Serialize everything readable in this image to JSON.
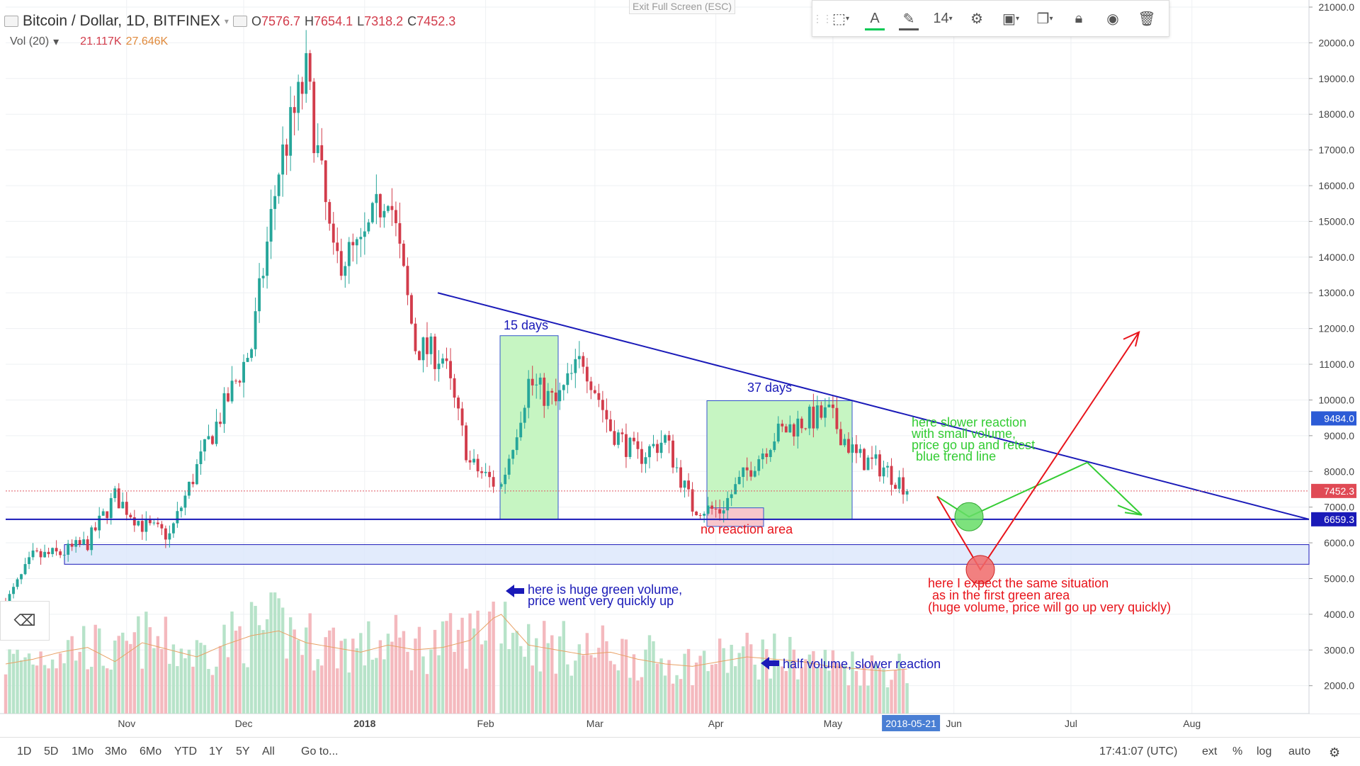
{
  "header": {
    "symbol": "Bitcoin / Dollar, 1D, BITFINEX",
    "open_label": "O",
    "open": "7576.7",
    "high_label": "H",
    "high": "7654.1",
    "low_label": "L",
    "low": "7318.2",
    "close_label": "C",
    "close": "7452.3",
    "volume_label": "Vol (20)",
    "volume_value": "21.117K",
    "volume_ma": "27.646K"
  },
  "fullscreen_label": "Exit Full Screen (ESC)",
  "toolbar": {
    "font_size": "14",
    "text_color": "#00c853",
    "line_color": "#555555"
  },
  "bottom_bar": {
    "ranges": [
      "1D",
      "5D",
      "1Mo",
      "3Mo",
      "6Mo",
      "YTD",
      "1Y",
      "5Y",
      "All"
    ],
    "goto": "Go to...",
    "clock": "17:41:07 (UTC)",
    "opt_ext": "ext",
    "opt_pct": "%",
    "opt_log": "log",
    "opt_auto": "auto"
  },
  "price_axis": {
    "ticks": [
      "21000.0",
      "20000.0",
      "19000.0",
      "18000.0",
      "17000.0",
      "16000.0",
      "15000.0",
      "14000.0",
      "13000.0",
      "12000.0",
      "11000.0",
      "10000.0",
      "9000.0",
      "8000.0",
      "7000.0",
      "6000.0",
      "5000.0",
      "4000.0",
      "3000.0",
      "2000.0"
    ],
    "badge_blue_top": "9484.0",
    "badge_last": "7452.3",
    "badge_blue_bottom": "6659.3"
  },
  "time_axis": {
    "labels": [
      "Nov",
      "Dec",
      "2018",
      "Feb",
      "Mar",
      "Apr",
      "May",
      "Jun",
      "Jul",
      "Aug"
    ],
    "crosshair_date": "2018-05-21"
  },
  "annotations": {
    "days15": "15 days",
    "days37": "37 days",
    "no_reaction": "no reaction area",
    "huge_volume_1": "here is huge green volume,",
    "huge_volume_2": "price went very quickly up",
    "half_volume": "half volume, slower reaction",
    "slower_1": "here slower reaction",
    "slower_2": "with small volume,",
    "slower_3": "price go up and retest",
    "slower_4": "blue trend line",
    "expect_1": "here I expect the same situation",
    "expect_2": "as in the first green area",
    "expect_3": "(huge volume, price will go up very quickly)"
  },
  "colors": {
    "up": "#26a69a",
    "down": "#d23c4b",
    "trend": "#1a1ab8",
    "green_zone": "#c6f5c2",
    "red_text": "#e8141b",
    "green_text": "#33cc33"
  },
  "chart_data": {
    "type": "candlestick",
    "title": "Bitcoin / Dollar, 1D, BITFINEX",
    "xlabel": "",
    "ylabel": "",
    "ylim": [
      1200,
      21000
    ],
    "x": [
      "2017-10-01",
      "2017-10-08",
      "2017-10-15",
      "2017-10-22",
      "2017-10-29",
      "2017-11-05",
      "2017-11-12",
      "2017-11-19",
      "2017-11-26",
      "2017-12-03",
      "2017-12-10",
      "2017-12-17",
      "2017-12-24",
      "2017-12-31",
      "2018-01-07",
      "2018-01-14",
      "2018-01-21",
      "2018-01-28",
      "2018-02-05",
      "2018-02-12",
      "2018-02-19",
      "2018-02-26",
      "2018-03-05",
      "2018-03-12",
      "2018-03-19",
      "2018-03-26",
      "2018-04-02",
      "2018-04-09",
      "2018-04-16",
      "2018-04-23",
      "2018-04-30",
      "2018-05-07",
      "2018-05-14",
      "2018-05-21"
    ],
    "close": [
      4300,
      5600,
      5700,
      6000,
      7300,
      6500,
      6200,
      8100,
      9800,
      11500,
      16500,
      19100,
      13900,
      14200,
      16000,
      11500,
      11200,
      8200,
      7600,
      10500,
      9900,
      11200,
      9200,
      8400,
      8900,
      7000,
      6900,
      8000,
      9000,
      9400,
      9600,
      8400,
      8100,
      7450
    ],
    "volume": [
      2.1,
      2.3,
      2.6,
      2.8,
      2.2,
      3.0,
      2.7,
      2.4,
      2.9,
      3.3,
      3.5,
      3.0,
      2.8,
      2.6,
      2.9,
      2.7,
      2.8,
      3.1,
      4.2,
      2.9,
      2.7,
      2.5,
      2.6,
      2.3,
      2.1,
      2.0,
      2.2,
      2.4,
      2.3,
      2.2,
      2.0,
      1.9,
      1.8,
      1.9
    ]
  }
}
